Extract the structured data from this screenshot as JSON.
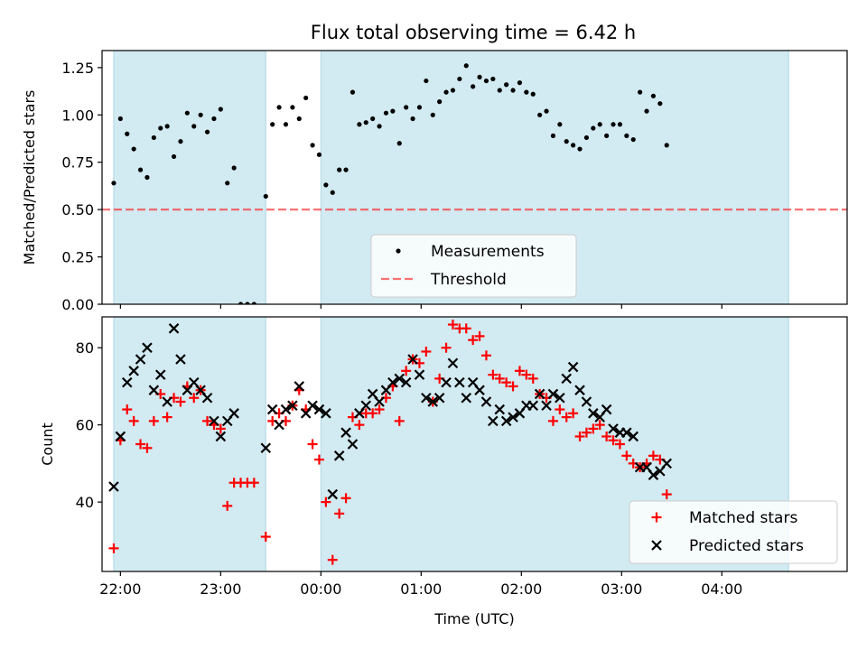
{
  "title": "Flux total observing time = 6.42 h",
  "colors": {
    "shade": "#add8e6",
    "threshold": "#ff0000",
    "matched": "#ff0000",
    "predicted": "#000000",
    "points": "#000000"
  },
  "chart_data": [
    {
      "type": "scatter",
      "title": "Flux total observing time = 6.42 h",
      "xlabel": "",
      "ylabel": "Matched/Predicted stars",
      "ylim": [
        0,
        1.34
      ],
      "yticks": [
        "0.00",
        "0.25",
        "0.50",
        "0.75",
        "1.00",
        "1.25"
      ],
      "xlim": [
        "21:49",
        "05:15"
      ],
      "shaded_intervals": [
        [
          "21:56",
          "23:27"
        ],
        [
          "00:00",
          "04:40"
        ]
      ],
      "threshold": 0.5,
      "legend": {
        "position": "lower center",
        "entries": [
          "Measurements",
          "Threshold"
        ]
      },
      "series": [
        {
          "name": "Measurements",
          "points": [
            [
              "21:56",
              0.64
            ],
            [
              "22:00",
              0.98
            ],
            [
              "22:04",
              0.9
            ],
            [
              "22:08",
              0.82
            ],
            [
              "22:12",
              0.71
            ],
            [
              "22:16",
              0.67
            ],
            [
              "22:20",
              0.88
            ],
            [
              "22:24",
              0.93
            ],
            [
              "22:28",
              0.94
            ],
            [
              "22:32",
              0.78
            ],
            [
              "22:36",
              0.86
            ],
            [
              "22:40",
              1.01
            ],
            [
              "22:44",
              0.94
            ],
            [
              "22:48",
              1.0
            ],
            [
              "22:52",
              0.91
            ],
            [
              "22:56",
              0.98
            ],
            [
              "23:00",
              1.03
            ],
            [
              "23:04",
              0.64
            ],
            [
              "23:08",
              0.72
            ],
            [
              "23:12",
              0.0
            ],
            [
              "23:16",
              0.0
            ],
            [
              "23:20",
              0.0
            ],
            [
              "23:27",
              0.57
            ],
            [
              "23:31",
              0.95
            ],
            [
              "23:35",
              1.04
            ],
            [
              "23:39",
              0.95
            ],
            [
              "23:43",
              1.04
            ],
            [
              "23:47",
              0.98
            ],
            [
              "23:51",
              1.09
            ],
            [
              "23:55",
              0.84
            ],
            [
              "23:59",
              0.79
            ],
            [
              "00:03",
              0.63
            ],
            [
              "00:07",
              0.59
            ],
            [
              "00:11",
              0.71
            ],
            [
              "00:15",
              0.71
            ],
            [
              "00:19",
              1.12
            ],
            [
              "00:23",
              0.95
            ],
            [
              "00:27",
              0.96
            ],
            [
              "00:31",
              0.98
            ],
            [
              "00:35",
              0.94
            ],
            [
              "00:39",
              1.01
            ],
            [
              "00:43",
              1.02
            ],
            [
              "00:47",
              0.85
            ],
            [
              "00:51",
              1.04
            ],
            [
              "00:55",
              0.98
            ],
            [
              "00:59",
              1.04
            ],
            [
              "01:03",
              1.18
            ],
            [
              "01:07",
              1.0
            ],
            [
              "01:11",
              1.07
            ],
            [
              "01:15",
              1.12
            ],
            [
              "01:19",
              1.13
            ],
            [
              "01:23",
              1.19
            ],
            [
              "01:27",
              1.26
            ],
            [
              "01:31",
              1.15
            ],
            [
              "01:35",
              1.2
            ],
            [
              "01:39",
              1.18
            ],
            [
              "01:43",
              1.19
            ],
            [
              "01:47",
              1.13
            ],
            [
              "01:51",
              1.16
            ],
            [
              "01:55",
              1.13
            ],
            [
              "01:59",
              1.17
            ],
            [
              "02:03",
              1.12
            ],
            [
              "02:07",
              1.11
            ],
            [
              "02:11",
              1.0
            ],
            [
              "02:15",
              1.02
            ],
            [
              "02:19",
              0.89
            ],
            [
              "02:23",
              0.95
            ],
            [
              "02:27",
              0.86
            ],
            [
              "02:31",
              0.84
            ],
            [
              "02:35",
              0.82
            ],
            [
              "02:39",
              0.88
            ],
            [
              "02:43",
              0.93
            ],
            [
              "02:47",
              0.95
            ],
            [
              "02:51",
              0.89
            ],
            [
              "02:55",
              0.95
            ],
            [
              "02:59",
              0.95
            ],
            [
              "03:03",
              0.89
            ],
            [
              "03:07",
              0.87
            ],
            [
              "03:11",
              1.12
            ],
            [
              "03:15",
              1.02
            ],
            [
              "03:19",
              1.1
            ],
            [
              "03:23",
              1.06
            ],
            [
              "03:27",
              0.84
            ]
          ]
        },
        {
          "name": "Threshold",
          "y": 0.5,
          "style": "dashed"
        }
      ]
    },
    {
      "type": "scatter",
      "xlabel": "Time (UTC)",
      "ylabel": "Count",
      "ylim": [
        22,
        88
      ],
      "yticks": [
        "40",
        "60",
        "80"
      ],
      "xticks": [
        "22:00",
        "23:00",
        "00:00",
        "01:00",
        "02:00",
        "03:00",
        "04:00"
      ],
      "xlim": [
        "21:49",
        "05:15"
      ],
      "shaded_intervals": [
        [
          "21:56",
          "23:27"
        ],
        [
          "00:00",
          "04:40"
        ]
      ],
      "legend": {
        "position": "lower right",
        "entries": [
          "Matched stars",
          "Predicted stars"
        ]
      },
      "series": [
        {
          "name": "Matched stars",
          "marker": "+",
          "points": [
            [
              "21:56",
              28
            ],
            [
              "22:00",
              56
            ],
            [
              "22:04",
              64
            ],
            [
              "22:08",
              61
            ],
            [
              "22:12",
              55
            ],
            [
              "22:16",
              54
            ],
            [
              "22:20",
              61
            ],
            [
              "22:24",
              68
            ],
            [
              "22:28",
              62
            ],
            [
              "22:32",
              67
            ],
            [
              "22:36",
              66
            ],
            [
              "22:40",
              70
            ],
            [
              "22:44",
              67
            ],
            [
              "22:48",
              69
            ],
            [
              "22:52",
              61
            ],
            [
              "22:56",
              60
            ],
            [
              "23:00",
              59
            ],
            [
              "23:04",
              39
            ],
            [
              "23:08",
              45
            ],
            [
              "23:12",
              45
            ],
            [
              "23:16",
              45
            ],
            [
              "23:20",
              45
            ],
            [
              "23:27",
              31
            ],
            [
              "23:31",
              61
            ],
            [
              "23:35",
              63
            ],
            [
              "23:39",
              61
            ],
            [
              "23:43",
              65
            ],
            [
              "23:47",
              69
            ],
            [
              "23:51",
              64
            ],
            [
              "23:55",
              55
            ],
            [
              "23:59",
              51
            ],
            [
              "00:03",
              40
            ],
            [
              "00:07",
              25
            ],
            [
              "00:11",
              37
            ],
            [
              "00:15",
              41
            ],
            [
              "00:19",
              62
            ],
            [
              "00:23",
              60
            ],
            [
              "00:27",
              63
            ],
            [
              "00:31",
              63
            ],
            [
              "00:35",
              64
            ],
            [
              "00:39",
              67
            ],
            [
              "00:43",
              70
            ],
            [
              "00:47",
              61
            ],
            [
              "00:51",
              74
            ],
            [
              "00:55",
              77
            ],
            [
              "00:59",
              76
            ],
            [
              "01:03",
              79
            ],
            [
              "01:07",
              66
            ],
            [
              "01:11",
              72
            ],
            [
              "01:15",
              80
            ],
            [
              "01:19",
              86
            ],
            [
              "01:23",
              85
            ],
            [
              "01:27",
              85
            ],
            [
              "01:31",
              82
            ],
            [
              "01:35",
              83
            ],
            [
              "01:39",
              78
            ],
            [
              "01:43",
              73
            ],
            [
              "01:47",
              72
            ],
            [
              "01:51",
              71
            ],
            [
              "01:55",
              70
            ],
            [
              "01:59",
              74
            ],
            [
              "02:03",
              73
            ],
            [
              "02:07",
              72
            ],
            [
              "02:11",
              68
            ],
            [
              "02:15",
              67
            ],
            [
              "02:19",
              61
            ],
            [
              "02:23",
              64
            ],
            [
              "02:27",
              62
            ],
            [
              "02:31",
              63
            ],
            [
              "02:35",
              57
            ],
            [
              "02:39",
              58
            ],
            [
              "02:43",
              59
            ],
            [
              "02:47",
              60
            ],
            [
              "02:51",
              57
            ],
            [
              "02:55",
              56
            ],
            [
              "02:59",
              55
            ],
            [
              "03:03",
              52
            ],
            [
              "03:07",
              50
            ],
            [
              "03:11",
              49
            ],
            [
              "03:15",
              50
            ],
            [
              "03:19",
              52
            ],
            [
              "03:23",
              51
            ],
            [
              "03:27",
              42
            ]
          ]
        },
        {
          "name": "Predicted stars",
          "marker": "x",
          "points": [
            [
              "21:56",
              44
            ],
            [
              "22:00",
              57
            ],
            [
              "22:04",
              71
            ],
            [
              "22:08",
              74
            ],
            [
              "22:12",
              77
            ],
            [
              "22:16",
              80
            ],
            [
              "22:20",
              69
            ],
            [
              "22:24",
              73
            ],
            [
              "22:28",
              66
            ],
            [
              "22:32",
              85
            ],
            [
              "22:36",
              77
            ],
            [
              "22:40",
              69
            ],
            [
              "22:44",
              71
            ],
            [
              "22:48",
              69
            ],
            [
              "22:52",
              67
            ],
            [
              "22:56",
              61
            ],
            [
              "23:00",
              57
            ],
            [
              "23:04",
              61
            ],
            [
              "23:08",
              63
            ],
            [
              "23:27",
              54
            ],
            [
              "23:31",
              64
            ],
            [
              "23:35",
              60
            ],
            [
              "23:39",
              64
            ],
            [
              "23:43",
              65
            ],
            [
              "23:47",
              70
            ],
            [
              "23:51",
              63
            ],
            [
              "23:55",
              65
            ],
            [
              "23:59",
              64
            ],
            [
              "00:03",
              63
            ],
            [
              "00:07",
              42
            ],
            [
              "00:11",
              52
            ],
            [
              "00:15",
              58
            ],
            [
              "00:19",
              55
            ],
            [
              "00:23",
              63
            ],
            [
              "00:27",
              65
            ],
            [
              "00:31",
              68
            ],
            [
              "00:35",
              66
            ],
            [
              "00:39",
              69
            ],
            [
              "00:43",
              71
            ],
            [
              "00:47",
              72
            ],
            [
              "00:51",
              71
            ],
            [
              "00:55",
              77
            ],
            [
              "00:59",
              73
            ],
            [
              "01:03",
              67
            ],
            [
              "01:07",
              66
            ],
            [
              "01:11",
              67
            ],
            [
              "01:15",
              71
            ],
            [
              "01:19",
              76
            ],
            [
              "01:23",
              71
            ],
            [
              "01:27",
              67
            ],
            [
              "01:31",
              71
            ],
            [
              "01:35",
              69
            ],
            [
              "01:39",
              66
            ],
            [
              "01:43",
              61
            ],
            [
              "01:47",
              64
            ],
            [
              "01:51",
              61
            ],
            [
              "01:55",
              62
            ],
            [
              "01:59",
              63
            ],
            [
              "02:03",
              65
            ],
            [
              "02:07",
              65
            ],
            [
              "02:11",
              68
            ],
            [
              "02:15",
              65
            ],
            [
              "02:19",
              68
            ],
            [
              "02:23",
              67
            ],
            [
              "02:27",
              72
            ],
            [
              "02:31",
              75
            ],
            [
              "02:35",
              69
            ],
            [
              "02:39",
              66
            ],
            [
              "02:43",
              63
            ],
            [
              "02:47",
              62
            ],
            [
              "02:51",
              64
            ],
            [
              "02:55",
              59
            ],
            [
              "02:59",
              58
            ],
            [
              "03:03",
              58
            ],
            [
              "03:07",
              57
            ],
            [
              "03:11",
              49
            ],
            [
              "03:15",
              49
            ],
            [
              "03:19",
              47
            ],
            [
              "03:23",
              48
            ],
            [
              "03:27",
              50
            ]
          ]
        }
      ]
    }
  ]
}
